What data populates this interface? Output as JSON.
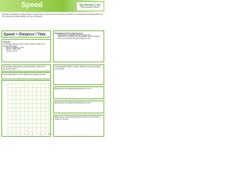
{
  "header": {
    "title": "Speed",
    "spec_label": "Specification Link:",
    "spec_value": "Physics Equation Practice"
  },
  "intro": "Speed is the distance an object travels in a certain time. Speed is the rate of change of distance. It is calculated by dividing distance by time. Speed is a scalar quantity, as it has no direction.",
  "equation": "Speed = Distance / Time",
  "example": {
    "heading": "Example",
    "question": "A man takes 100 seconds to travel 1,500 m. What is the speed of the man?",
    "steps": [
      "Speed = Distance / Time",
      "Speed = 1500 / 100",
      "Speed = 15 m/s"
    ]
  },
  "remember": {
    "heading": "Remember the three step process:",
    "steps": [
      "Write down the equation you are going to use",
      "Substitute the numbers from the question into the equation",
      "Work out the answer and write down the unit"
    ]
  },
  "questions": [
    "A train takes 10 seconds to travel 80 metres. What is the speed of the train?",
    "A car travels 600 m in 30 s. What is the speed of the car?",
    "A cyclist travels 2,000 m in 400 s. What is their speed? Show your working.",
    "What speed of an object that travels 50 m in 5 s?",
    "What speed of an object that travels 90 m in 3 s?",
    "What speed of an object that travels 1,200 m in 60 s? Plot its motion on the grid."
  ],
  "graph": {
    "x_labels": [
      "0",
      "1",
      "2",
      "3",
      "4",
      "5",
      "6",
      "7",
      "8",
      "9",
      "10"
    ]
  }
}
